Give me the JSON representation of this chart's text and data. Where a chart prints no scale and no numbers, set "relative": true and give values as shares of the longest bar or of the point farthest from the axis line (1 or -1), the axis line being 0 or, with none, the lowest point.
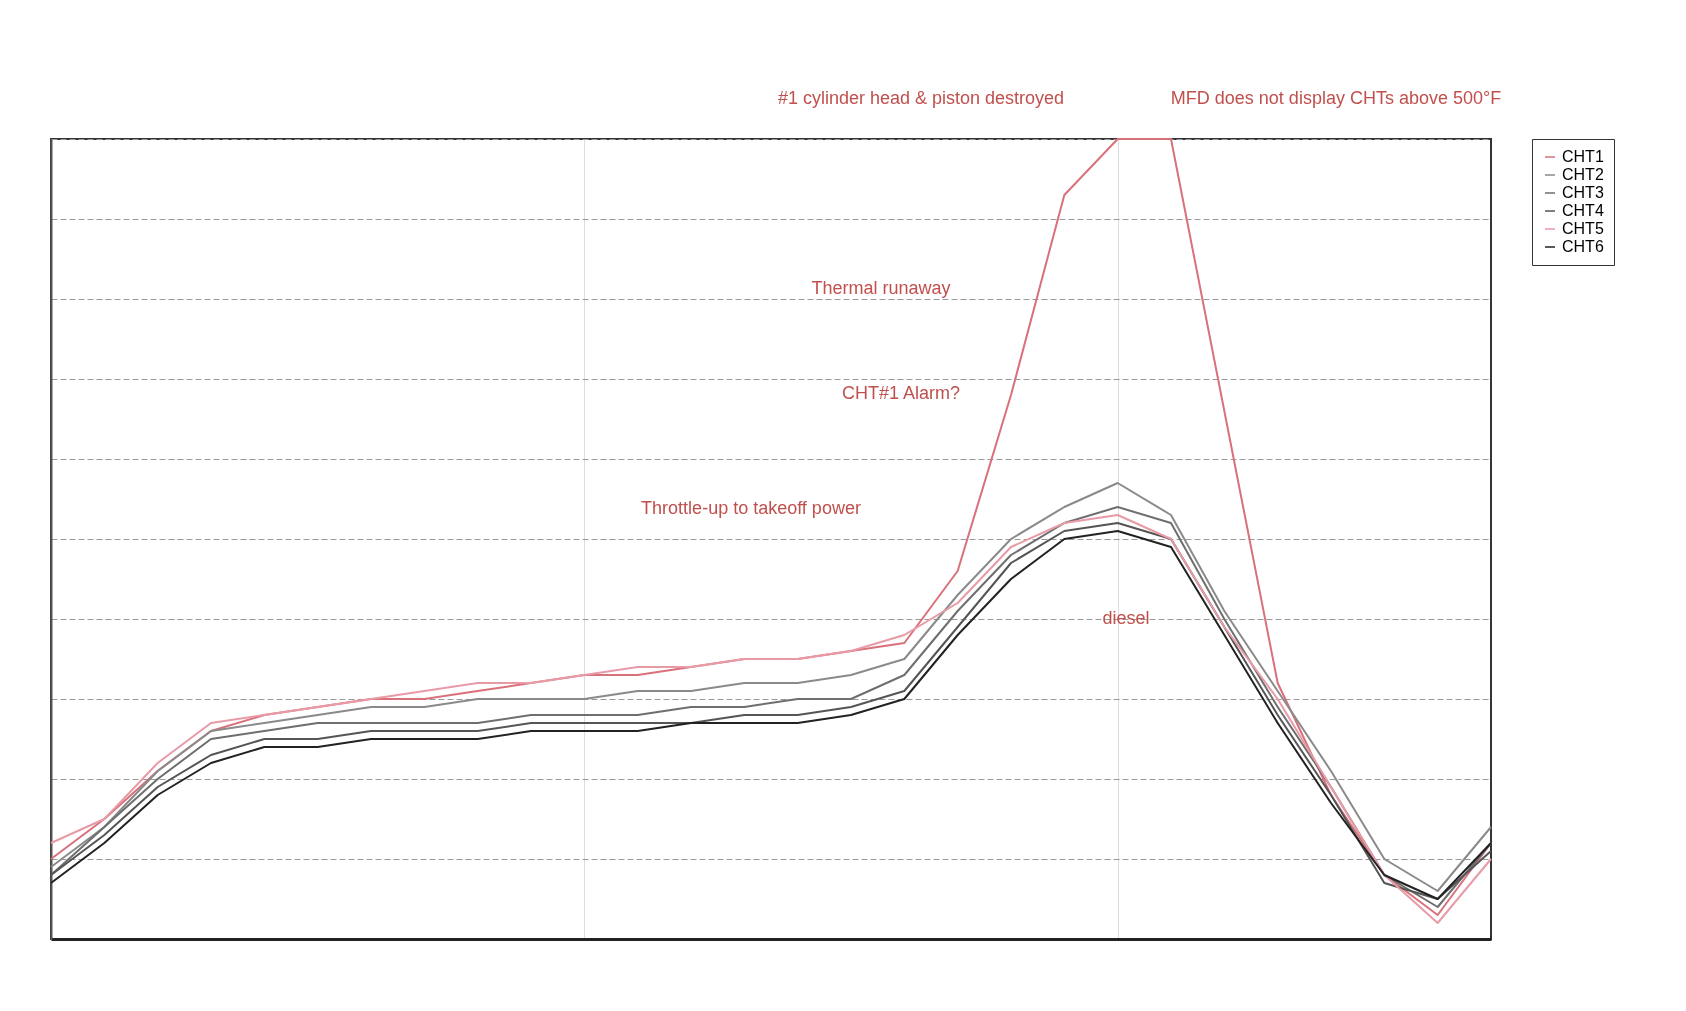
{
  "chart_data": {
    "type": "line",
    "relative": true,
    "grid": true,
    "legend": "top right",
    "marker": "none",
    "line_style": "solid",
    "categories": [
      null,
      null,
      null,
      null,
      null,
      null,
      null,
      null,
      null,
      null,
      null,
      null,
      null,
      null,
      null,
      null,
      null,
      null,
      null,
      null,
      null,
      null,
      null,
      null,
      null,
      null,
      null,
      null
    ],
    "series": [
      {
        "name": "CHT1",
        "color": "#d9707a",
        "values": [
          0.1,
          0.15,
          0.21,
          0.26,
          0.28,
          0.29,
          0.3,
          0.3,
          0.31,
          0.32,
          0.33,
          0.33,
          0.34,
          0.35,
          0.35,
          0.36,
          0.37,
          0.46,
          0.68,
          0.93,
          1,
          1,
          0.66,
          0.32,
          0.18,
          0.08,
          0.03,
          0.12
        ]
      },
      {
        "name": "CHT2",
        "color": "#8a8a8a",
        "values": [
          0.09,
          0.14,
          0.21,
          0.26,
          0.27,
          0.28,
          0.29,
          0.29,
          0.3,
          0.3,
          0.3,
          0.31,
          0.31,
          0.32,
          0.32,
          0.33,
          0.35,
          0.43,
          0.5,
          0.54,
          0.57,
          0.53,
          0.41,
          0.31,
          0.21,
          0.1,
          0.06,
          0.14
        ]
      },
      {
        "name": "CHT3",
        "color": "#6e6e6e",
        "values": [
          0.08,
          0.14,
          0.2,
          0.25,
          0.26,
          0.27,
          0.27,
          0.27,
          0.27,
          0.28,
          0.28,
          0.28,
          0.29,
          0.29,
          0.3,
          0.3,
          0.33,
          0.41,
          0.48,
          0.52,
          0.54,
          0.52,
          0.4,
          0.29,
          0.19,
          0.08,
          0.04,
          0.12
        ]
      },
      {
        "name": "CHT4",
        "color": "#555555",
        "values": [
          0.08,
          0.13,
          0.19,
          0.23,
          0.25,
          0.25,
          0.26,
          0.26,
          0.26,
          0.27,
          0.27,
          0.27,
          0.27,
          0.28,
          0.28,
          0.29,
          0.31,
          0.39,
          0.47,
          0.51,
          0.52,
          0.5,
          0.39,
          0.28,
          0.18,
          0.07,
          0.05,
          0.11
        ]
      },
      {
        "name": "CHT5",
        "color": "#e89aa6",
        "values": [
          0.12,
          0.15,
          0.22,
          0.27,
          0.28,
          0.29,
          0.3,
          0.31,
          0.32,
          0.32,
          0.33,
          0.34,
          0.34,
          0.35,
          0.35,
          0.36,
          0.38,
          0.42,
          0.49,
          0.52,
          0.53,
          0.5,
          0.39,
          0.3,
          0.19,
          0.08,
          0.02,
          0.1
        ]
      },
      {
        "name": "CHT6",
        "color": "#222222",
        "values": [
          0.07,
          0.12,
          0.18,
          0.22,
          0.24,
          0.24,
          0.25,
          0.25,
          0.25,
          0.26,
          0.26,
          0.26,
          0.27,
          0.27,
          0.27,
          0.28,
          0.3,
          0.38,
          0.45,
          0.5,
          0.51,
          0.49,
          0.38,
          0.27,
          0.17,
          0.08,
          0.05,
          0.12
        ]
      }
    ],
    "annotations": [
      "#1 cylinder head & piston destroyed",
      "MFD does not display CHTs above 500°F",
      "Thermal runaway",
      "CHT#1 Alarm?",
      "Throttle-up to takeoff power",
      "diesel"
    ]
  }
}
